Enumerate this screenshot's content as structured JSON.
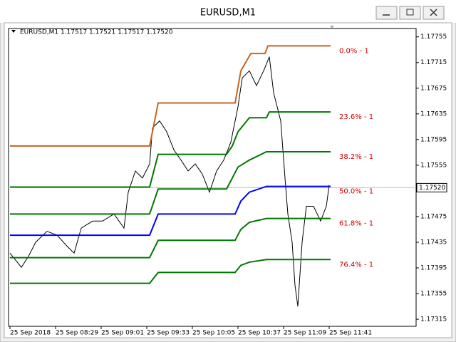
{
  "chart_data": {
    "type": "line",
    "title": "EURUSD,M1",
    "subtitle": "EURUSD,M1  1.17517 1.17521 1.17517 1.17520",
    "xlim": [
      -1,
      285
    ],
    "xticks": [
      {
        "value": 0,
        "label": "25 Sep 2018"
      },
      {
        "value": 32,
        "label": "25 Sep 08:29"
      },
      {
        "value": 64,
        "label": "25 Sep 09:01"
      },
      {
        "value": 96,
        "label": "25 Sep 09:33"
      },
      {
        "value": 128,
        "label": "25 Sep 10:05"
      },
      {
        "value": 160,
        "label": "25 Sep 10:37"
      },
      {
        "value": 192,
        "label": "25 Sep 11:09"
      },
      {
        "value": 224,
        "label": "25 Sep 11:41"
      }
    ],
    "ylim": [
      1.17304,
      1.17768
    ],
    "yticks": [
      1.17315,
      1.17355,
      1.17395,
      1.17435,
      1.17475,
      1.17555,
      1.17595,
      1.17635,
      1.17675,
      1.17715,
      1.17755
    ],
    "current_price": {
      "value": 1.1752,
      "label": "1.17520"
    },
    "grid": false,
    "series": [
      {
        "color": "#000000",
        "x": [
          0,
          8,
          13,
          18,
          26,
          33,
          40,
          45,
          50,
          58,
          65,
          73,
          80,
          83,
          88,
          93,
          98,
          100,
          105,
          110,
          115,
          120,
          125,
          130,
          135,
          140,
          145,
          150,
          155,
          160,
          163,
          168,
          173,
          178,
          182,
          185,
          190,
          193,
          195,
          198,
          200,
          202,
          205,
          208,
          213,
          218,
          222,
          224
        ],
        "values": [
          1.17418,
          1.17396,
          1.17413,
          1.17435,
          1.17452,
          1.17446,
          1.17429,
          1.17418,
          1.17457,
          1.17468,
          1.17468,
          1.17479,
          1.17457,
          1.17513,
          1.17546,
          1.17535,
          1.17557,
          1.17613,
          1.17624,
          1.17607,
          1.17579,
          1.17563,
          1.17546,
          1.17557,
          1.17541,
          1.17513,
          1.17546,
          1.17563,
          1.17591,
          1.17646,
          1.17691,
          1.17702,
          1.17679,
          1.17702,
          1.17724,
          1.17668,
          1.17624,
          1.17535,
          1.17479,
          1.17435,
          1.17368,
          1.17335,
          1.17435,
          1.17491,
          1.17491,
          1.17468,
          1.17491,
          1.17524
        ]
      },
      {
        "name": "0.0% - 1",
        "color": "#c8641e",
        "x": [
          0,
          98,
          104,
          158,
          162,
          169,
          179,
          181,
          225
        ],
        "values": [
          1.17585,
          1.17585,
          1.17652,
          1.17652,
          1.17702,
          1.17729,
          1.17729,
          1.17741,
          1.17741
        ]
      },
      {
        "name": "23.6% - 1",
        "color": "#007800",
        "x": [
          0,
          98,
          104,
          152,
          156,
          160,
          168,
          180,
          182,
          225
        ],
        "values": [
          1.17521,
          1.17521,
          1.17572,
          1.17572,
          1.17585,
          1.17607,
          1.17629,
          1.17629,
          1.17638,
          1.17638
        ]
      },
      {
        "name": "38.2% - 1",
        "color": "#007800",
        "x": [
          0,
          98,
          104,
          152,
          160,
          168,
          180,
          225
        ],
        "values": [
          1.17479,
          1.17479,
          1.17518,
          1.17518,
          1.17552,
          1.17563,
          1.17576,
          1.17576
        ]
      },
      {
        "name": "50.0% - 1",
        "color": "#0000ff",
        "x": [
          0,
          98,
          104,
          158,
          162,
          168,
          180,
          225
        ],
        "values": [
          1.17446,
          1.17446,
          1.17479,
          1.17479,
          1.17499,
          1.17513,
          1.17522,
          1.17522
        ]
      },
      {
        "name": "61.8% - 1",
        "color": "#007800",
        "x": [
          0,
          98,
          104,
          158,
          162,
          168,
          180,
          225
        ],
        "values": [
          1.17411,
          1.17411,
          1.17438,
          1.17438,
          1.17455,
          1.17466,
          1.17472,
          1.17472
        ]
      },
      {
        "name": "76.4% - 1",
        "color": "#007800",
        "x": [
          0,
          98,
          104,
          158,
          162,
          168,
          180,
          225
        ],
        "values": [
          1.17371,
          1.17371,
          1.17388,
          1.17388,
          1.17399,
          1.17404,
          1.17408,
          1.17408
        ]
      }
    ]
  }
}
